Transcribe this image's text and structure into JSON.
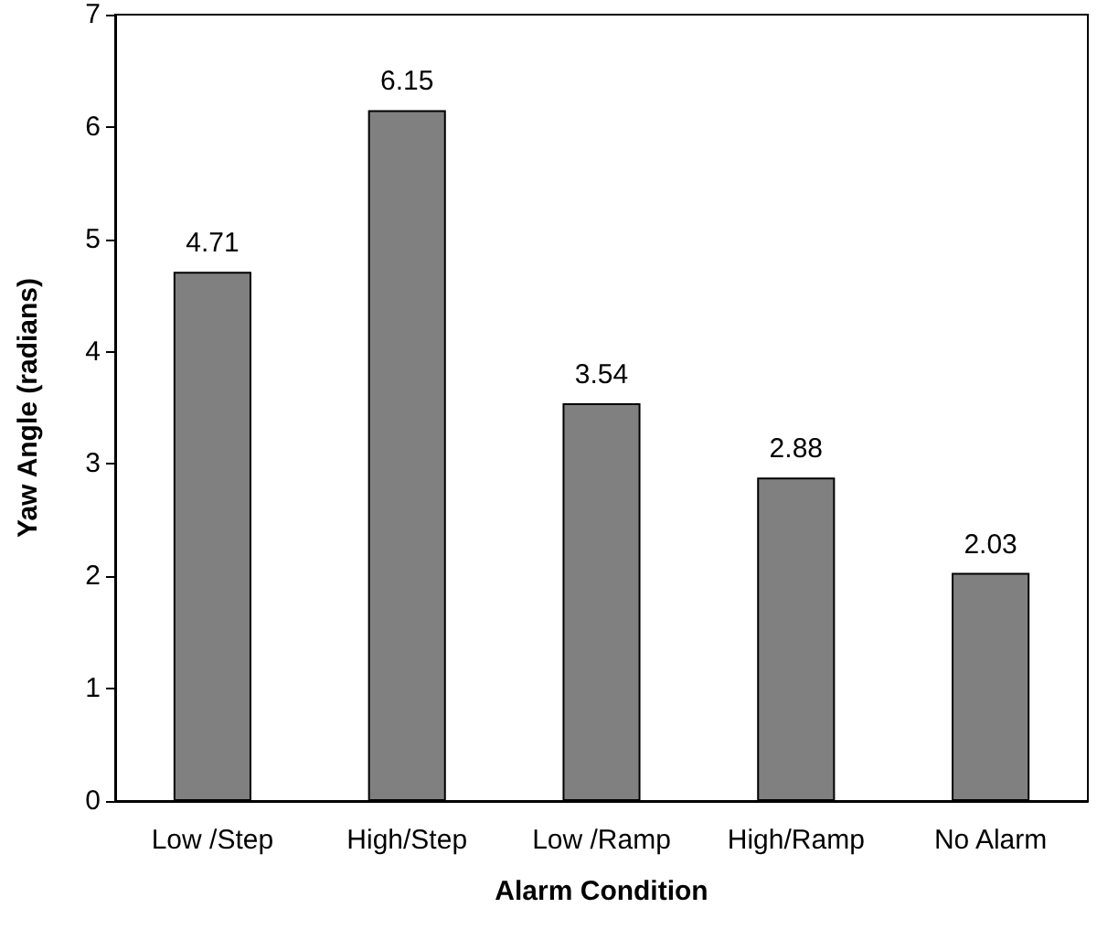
{
  "chart_data": {
    "type": "bar",
    "xlabel": "Alarm Condition",
    "ylabel": "Yaw Angle (radians)",
    "categories": [
      "Low /Step",
      "High/Step",
      "Low /Ramp",
      "High/Ramp",
      "No Alarm"
    ],
    "values": [
      4.71,
      6.15,
      3.54,
      2.88,
      2.03
    ],
    "color": "#808080",
    "ylim": [
      0,
      7
    ],
    "yticks": [
      0,
      1,
      2,
      3,
      4,
      5,
      6,
      7
    ],
    "grid": false,
    "data_labels": true
  }
}
